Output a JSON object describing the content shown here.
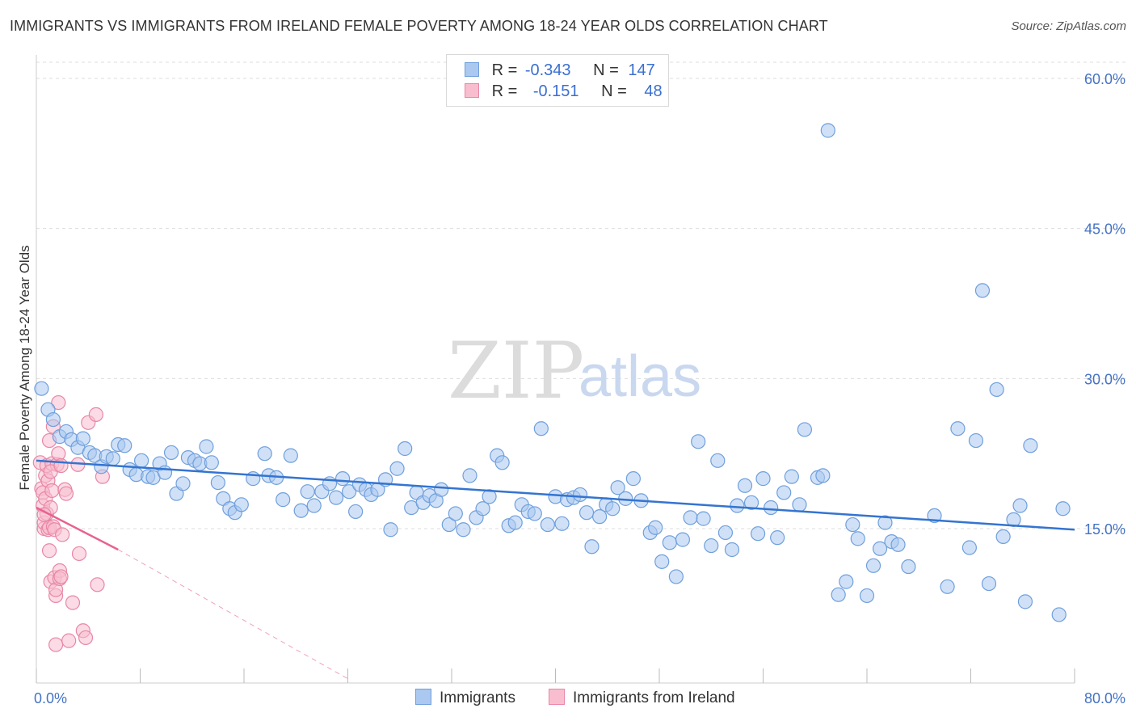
{
  "title": "IMMIGRANTS VS IMMIGRANTS FROM IRELAND FEMALE POVERTY AMONG 18-24 YEAR OLDS CORRELATION CHART",
  "source": "Source: ZipAtlas.com",
  "watermark": {
    "zip": "ZIP",
    "atlas": "atlas"
  },
  "colors": {
    "blue_fill": "#aac8f0",
    "blue_stroke": "#6f9fdc",
    "blue_line": "#3474d0",
    "pink_fill": "#f8bed0",
    "pink_stroke": "#e887a6",
    "pink_line": "#e8628e",
    "grid": "#dcdcdc",
    "axis_text": "#4472c4"
  },
  "legend": {
    "rows": [
      {
        "r_label": "R =",
        "r_value": "-0.343",
        "n_label": "N =",
        "n_value": "147"
      },
      {
        "r_label": "R =",
        "r_value": "-0.151",
        "n_label": "N =",
        "n_value": "48"
      }
    ]
  },
  "chart_data": {
    "type": "scatter",
    "title": "IMMIGRANTS VS IMMIGRANTS FROM IRELAND FEMALE POVERTY AMONG 18-24 YEAR OLDS CORRELATION CHART",
    "xlabel": "",
    "ylabel": "Female Poverty Among 18-24 Year Olds",
    "xlim": [
      0,
      80
    ],
    "ylim": [
      0,
      63
    ],
    "x_tick_labels": [
      "0.0%",
      "80.0%"
    ],
    "y_ticks": [
      15,
      30,
      45,
      60
    ],
    "y_tick_labels": [
      "15.0%",
      "30.0%",
      "45.0%",
      "60.0%"
    ],
    "grid": true,
    "legend_position": "bottom",
    "series": [
      {
        "name": "Immigrants",
        "r": -0.343,
        "n": 147,
        "trend": {
          "x": [
            0,
            80
          ],
          "y": [
            21.8,
            14.9
          ]
        },
        "points": [
          [
            0.4,
            29.0
          ],
          [
            0.9,
            26.9
          ],
          [
            1.3,
            25.9
          ],
          [
            1.8,
            24.2
          ],
          [
            2.3,
            24.7
          ],
          [
            2.7,
            23.9
          ],
          [
            3.2,
            23.1
          ],
          [
            3.6,
            24.0
          ],
          [
            4.1,
            22.6
          ],
          [
            4.5,
            22.3
          ],
          [
            5.0,
            21.2
          ],
          [
            5.4,
            22.2
          ],
          [
            5.9,
            22.0
          ],
          [
            6.3,
            23.4
          ],
          [
            6.8,
            23.3
          ],
          [
            7.2,
            20.9
          ],
          [
            7.7,
            20.4
          ],
          [
            8.1,
            21.8
          ],
          [
            8.6,
            20.2
          ],
          [
            9.0,
            20.1
          ],
          [
            9.5,
            21.5
          ],
          [
            9.9,
            20.6
          ],
          [
            10.4,
            22.6
          ],
          [
            10.8,
            18.5
          ],
          [
            11.3,
            19.5
          ],
          [
            11.7,
            22.1
          ],
          [
            12.2,
            21.8
          ],
          [
            12.6,
            21.5
          ],
          [
            13.1,
            23.2
          ],
          [
            13.5,
            21.6
          ],
          [
            14.0,
            19.6
          ],
          [
            14.4,
            18.0
          ],
          [
            14.9,
            17.0
          ],
          [
            15.3,
            16.6
          ],
          [
            15.8,
            17.4
          ],
          [
            16.7,
            20.0
          ],
          [
            17.6,
            22.5
          ],
          [
            17.9,
            20.3
          ],
          [
            18.5,
            20.1
          ],
          [
            19.0,
            17.9
          ],
          [
            19.6,
            22.3
          ],
          [
            20.4,
            16.8
          ],
          [
            20.9,
            18.7
          ],
          [
            21.4,
            17.3
          ],
          [
            22.0,
            18.7
          ],
          [
            22.6,
            19.5
          ],
          [
            23.1,
            18.1
          ],
          [
            23.6,
            20.0
          ],
          [
            24.1,
            18.7
          ],
          [
            24.6,
            16.7
          ],
          [
            24.9,
            19.4
          ],
          [
            25.4,
            18.9
          ],
          [
            25.8,
            18.4
          ],
          [
            26.3,
            18.9
          ],
          [
            26.9,
            19.9
          ],
          [
            27.3,
            14.9
          ],
          [
            27.8,
            21.0
          ],
          [
            28.4,
            23.0
          ],
          [
            28.9,
            17.1
          ],
          [
            29.3,
            18.6
          ],
          [
            29.8,
            17.6
          ],
          [
            30.3,
            18.3
          ],
          [
            30.8,
            17.8
          ],
          [
            31.2,
            18.9
          ],
          [
            31.8,
            15.4
          ],
          [
            32.3,
            16.5
          ],
          [
            32.9,
            14.9
          ],
          [
            33.4,
            20.3
          ],
          [
            33.9,
            16.1
          ],
          [
            34.4,
            17.0
          ],
          [
            34.9,
            18.2
          ],
          [
            35.5,
            22.3
          ],
          [
            35.9,
            21.6
          ],
          [
            36.4,
            15.3
          ],
          [
            36.9,
            15.6
          ],
          [
            37.4,
            17.4
          ],
          [
            37.9,
            16.7
          ],
          [
            38.4,
            16.5
          ],
          [
            38.9,
            25.0
          ],
          [
            39.4,
            15.4
          ],
          [
            40.0,
            18.2
          ],
          [
            40.5,
            15.5
          ],
          [
            40.9,
            17.9
          ],
          [
            41.4,
            18.1
          ],
          [
            41.9,
            18.4
          ],
          [
            42.4,
            16.6
          ],
          [
            42.8,
            13.2
          ],
          [
            43.4,
            16.2
          ],
          [
            43.9,
            17.4
          ],
          [
            44.4,
            17.0
          ],
          [
            44.8,
            19.1
          ],
          [
            45.4,
            18.0
          ],
          [
            46.0,
            20.0
          ],
          [
            46.6,
            17.8
          ],
          [
            47.3,
            14.6
          ],
          [
            47.7,
            15.1
          ],
          [
            48.2,
            11.7
          ],
          [
            48.8,
            13.6
          ],
          [
            49.3,
            10.2
          ],
          [
            49.8,
            13.9
          ],
          [
            50.4,
            16.1
          ],
          [
            51.0,
            23.7
          ],
          [
            51.4,
            16.0
          ],
          [
            52.0,
            13.3
          ],
          [
            52.5,
            21.8
          ],
          [
            53.1,
            14.6
          ],
          [
            53.6,
            12.9
          ],
          [
            54.0,
            17.3
          ],
          [
            54.6,
            19.3
          ],
          [
            55.1,
            17.6
          ],
          [
            55.6,
            14.5
          ],
          [
            56.0,
            20.0
          ],
          [
            56.6,
            17.1
          ],
          [
            57.1,
            14.1
          ],
          [
            57.6,
            18.6
          ],
          [
            58.2,
            20.2
          ],
          [
            58.8,
            17.4
          ],
          [
            59.2,
            24.9
          ],
          [
            60.2,
            20.1
          ],
          [
            60.6,
            20.3
          ],
          [
            61.0,
            54.8
          ],
          [
            61.8,
            8.4
          ],
          [
            62.4,
            9.7
          ],
          [
            62.9,
            15.4
          ],
          [
            63.3,
            14.0
          ],
          [
            64.0,
            8.3
          ],
          [
            64.5,
            11.3
          ],
          [
            65.0,
            13.0
          ],
          [
            65.4,
            15.6
          ],
          [
            65.9,
            13.7
          ],
          [
            66.4,
            13.4
          ],
          [
            67.2,
            11.2
          ],
          [
            69.2,
            16.3
          ],
          [
            70.2,
            9.2
          ],
          [
            71.0,
            25.0
          ],
          [
            71.9,
            13.1
          ],
          [
            72.4,
            23.8
          ],
          [
            72.9,
            38.8
          ],
          [
            73.4,
            9.5
          ],
          [
            74.0,
            28.9
          ],
          [
            74.5,
            14.2
          ],
          [
            75.3,
            15.9
          ],
          [
            75.8,
            17.3
          ],
          [
            76.2,
            7.7
          ],
          [
            76.6,
            23.3
          ],
          [
            78.8,
            6.4
          ],
          [
            79.1,
            17.0
          ]
        ]
      },
      {
        "name": "Immigrants from Ireland",
        "r": -0.151,
        "n": 48,
        "trend": {
          "x": [
            0,
            6.3
          ],
          "y": [
            17.1,
            12.9
          ]
        },
        "trend_dashed": {
          "x": [
            6.3,
            24
          ],
          "y": [
            12.9,
            0
          ]
        },
        "points": [
          [
            0.3,
            21.6
          ],
          [
            0.4,
            19.0
          ],
          [
            0.5,
            18.6
          ],
          [
            0.5,
            17.3
          ],
          [
            0.6,
            15.0
          ],
          [
            0.6,
            15.6
          ],
          [
            0.7,
            18.0
          ],
          [
            0.7,
            20.3
          ],
          [
            0.8,
            21.3
          ],
          [
            0.8,
            16.5
          ],
          [
            0.9,
            19.8
          ],
          [
            0.9,
            14.9
          ],
          [
            1.0,
            12.8
          ],
          [
            1.0,
            15.1
          ],
          [
            1.1,
            17.1
          ],
          [
            1.1,
            9.7
          ],
          [
            1.2,
            18.8
          ],
          [
            1.2,
            21.5
          ],
          [
            1.3,
            15.2
          ],
          [
            1.3,
            25.2
          ],
          [
            1.4,
            10.1
          ],
          [
            1.4,
            14.9
          ],
          [
            1.5,
            8.3
          ],
          [
            1.5,
            8.9
          ],
          [
            1.6,
            21.4
          ],
          [
            1.7,
            22.5
          ],
          [
            1.7,
            27.6
          ],
          [
            1.8,
            10.8
          ],
          [
            1.8,
            10.0
          ],
          [
            1.9,
            10.2
          ],
          [
            2.0,
            14.4
          ],
          [
            2.2,
            18.9
          ],
          [
            2.3,
            18.5
          ],
          [
            2.5,
            3.8
          ],
          [
            2.8,
            7.6
          ],
          [
            3.2,
            21.4
          ],
          [
            3.3,
            12.5
          ],
          [
            3.6,
            4.8
          ],
          [
            3.8,
            4.1
          ],
          [
            4.0,
            25.6
          ],
          [
            4.6,
            26.4
          ],
          [
            4.7,
            9.4
          ],
          [
            5.1,
            20.2
          ],
          [
            1.5,
            3.4
          ],
          [
            1.1,
            20.7
          ],
          [
            0.6,
            16.4
          ],
          [
            1.9,
            21.3
          ],
          [
            1.0,
            23.8
          ]
        ]
      }
    ]
  }
}
